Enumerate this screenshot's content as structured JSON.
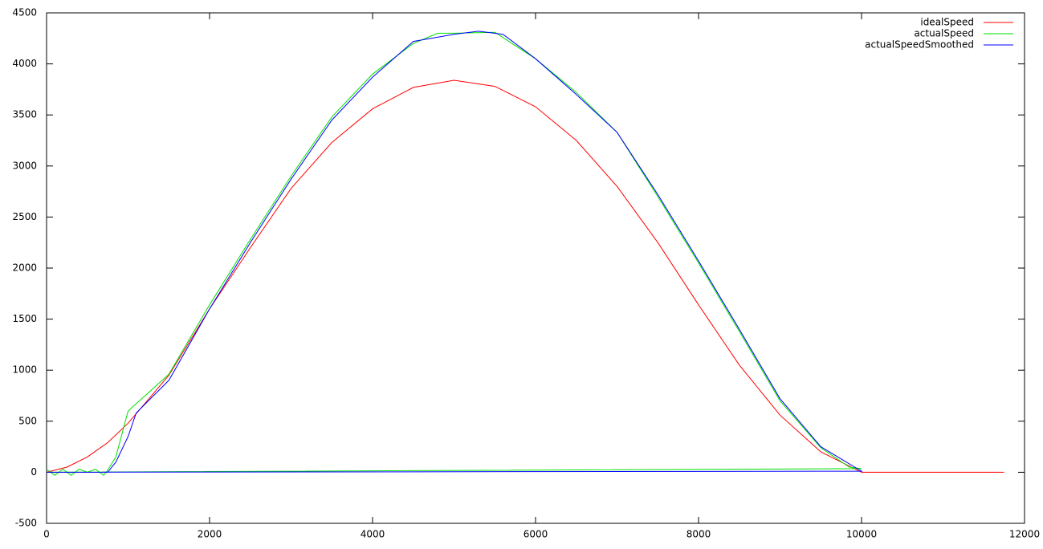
{
  "chart_data": {
    "type": "line",
    "xlim": [
      0,
      12000
    ],
    "xticks": [
      0,
      2000,
      4000,
      6000,
      8000,
      10000,
      12000
    ],
    "ylim": [
      -500,
      4500
    ],
    "yticks": [
      -500,
      0,
      500,
      1000,
      1500,
      2000,
      2500,
      3000,
      3500,
      4000,
      4500
    ],
    "legend": "top-right",
    "series": [
      {
        "name": "idealSpeed",
        "color": "#ff0000",
        "x": [
          0,
          250,
          500,
          750,
          1000,
          1500,
          2000,
          2500,
          3000,
          3500,
          4000,
          4500,
          5000,
          5500,
          6000,
          6500,
          7000,
          7500,
          8000,
          8500,
          9000,
          9500,
          10000,
          11750
        ],
        "values": [
          0,
          50,
          150,
          290,
          480,
          950,
          1600,
          2200,
          2780,
          3230,
          3560,
          3770,
          3840,
          3780,
          3580,
          3250,
          2800,
          2250,
          1640,
          1050,
          560,
          200,
          0,
          0
        ]
      },
      {
        "name": "actualSpeed",
        "color": "#00e000",
        "x": [
          0,
          100,
          200,
          300,
          400,
          500,
          600,
          700,
          750,
          850,
          1000,
          1250,
          1500,
          2000,
          2500,
          3000,
          3500,
          4000,
          4500,
          4800,
          5000,
          5500,
          6000,
          6500,
          7000,
          7500,
          8000,
          8500,
          9000,
          9500,
          9850,
          10000,
          0
        ],
        "values": [
          30,
          -30,
          30,
          -30,
          30,
          0,
          30,
          -30,
          20,
          150,
          600,
          780,
          960,
          1640,
          2280,
          2900,
          3480,
          3900,
          4200,
          4300,
          4300,
          4310,
          4050,
          3720,
          3330,
          2700,
          2050,
          1380,
          700,
          240,
          50,
          35,
          0
        ]
      },
      {
        "name": "actualSpeedSmoothed",
        "color": "#0000ff",
        "x": [
          0,
          750,
          850,
          1000,
          1100,
          1500,
          2000,
          2500,
          3000,
          3500,
          4000,
          4500,
          5000,
          5300,
          5600,
          6000,
          6500,
          7000,
          7500,
          8000,
          8500,
          9000,
          9500,
          10000,
          0
        ],
        "values": [
          0,
          0,
          100,
          350,
          580,
          900,
          1600,
          2250,
          2870,
          3450,
          3870,
          4220,
          4290,
          4320,
          4290,
          4050,
          3700,
          3330,
          2720,
          2070,
          1400,
          720,
          250,
          10,
          0
        ]
      }
    ]
  }
}
